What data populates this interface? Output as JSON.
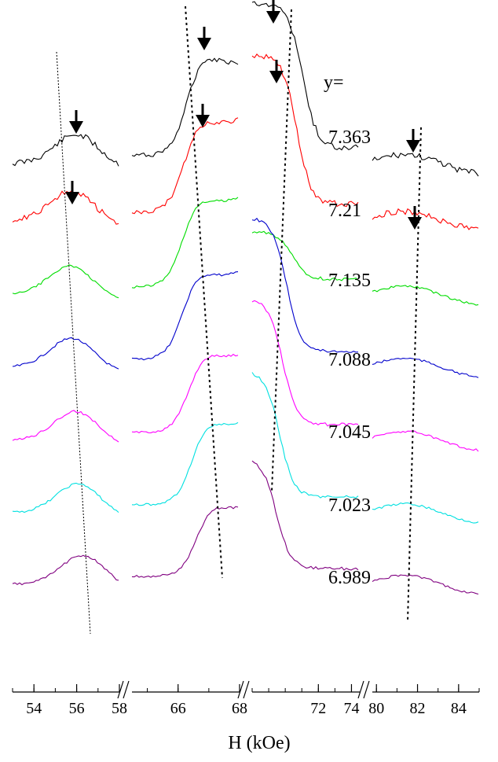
{
  "chart_data": {
    "type": "line",
    "title": "",
    "xlabel": "H (kOe)",
    "ylabel": "",
    "x_axis": {
      "segments": [
        {
          "range": [
            53,
            58
          ],
          "ticks": [
            54,
            56,
            58
          ]
        },
        {
          "range": [
            64.5,
            68
          ],
          "ticks": [
            66,
            68
          ]
        },
        {
          "range": [
            68,
            74.5
          ],
          "ticks": [
            72,
            74
          ]
        },
        {
          "range": [
            79.8,
            85
          ],
          "ticks": [
            80,
            82,
            84
          ]
        }
      ],
      "breaks": [
        "58/64.5",
        "68/68",
        "74.5/79.8"
      ]
    },
    "y_label_header": "y=",
    "series": [
      {
        "name": "7.363",
        "color": "#000000"
      },
      {
        "name": "7.21",
        "color": "#ff0000"
      },
      {
        "name": "7.135",
        "color": "#00dd00"
      },
      {
        "name": "7.088",
        "color": "#0000cc"
      },
      {
        "name": "7.045",
        "color": "#ff00ff"
      },
      {
        "name": "7.023",
        "color": "#00e0e0"
      },
      {
        "name": "6.989",
        "color": "#800080"
      }
    ],
    "grid": false,
    "legend": "labels placed right of center panel"
  }
}
